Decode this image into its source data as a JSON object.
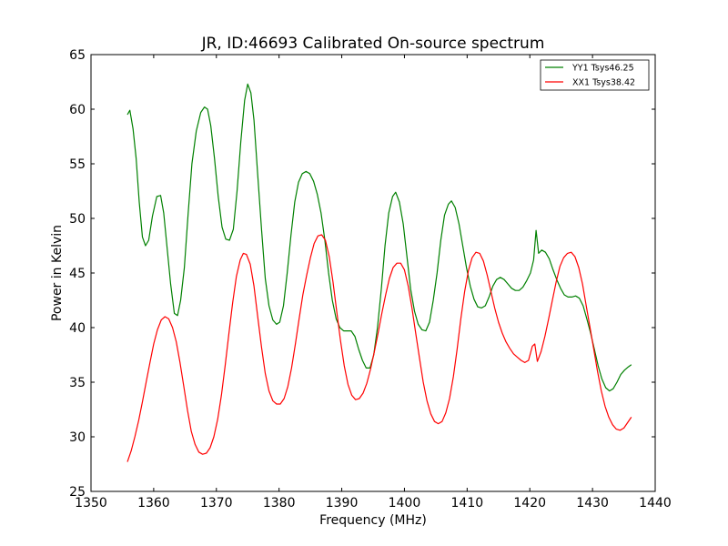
{
  "chart_data": {
    "type": "line",
    "title": "JR, ID:46693 Calibrated On-source spectrum",
    "xlabel": "Frequency (MHz)",
    "ylabel": "Power in Kelvin",
    "xlim": [
      1350,
      1440
    ],
    "ylim": [
      25,
      65
    ],
    "xticks": [
      1350,
      1360,
      1370,
      1380,
      1390,
      1400,
      1410,
      1420,
      1430,
      1440
    ],
    "yticks": [
      25,
      30,
      35,
      40,
      45,
      50,
      55,
      60,
      65
    ],
    "grid": false,
    "legend_position": "top-right",
    "series": [
      {
        "name": "YY1 Tsys46.25",
        "color": "#008000",
        "points": [
          [
            1355.8,
            59.5
          ],
          [
            1356.2,
            59.9
          ],
          [
            1356.7,
            58.2
          ],
          [
            1357.2,
            55.5
          ],
          [
            1357.7,
            51.5
          ],
          [
            1358.2,
            48.3
          ],
          [
            1358.7,
            47.5
          ],
          [
            1359.2,
            48.0
          ],
          [
            1359.8,
            50.2
          ],
          [
            1360.5,
            52.0
          ],
          [
            1361.1,
            52.1
          ],
          [
            1361.6,
            50.5
          ],
          [
            1362.1,
            47.5
          ],
          [
            1362.7,
            44.0
          ],
          [
            1363.3,
            41.3
          ],
          [
            1363.8,
            41.1
          ],
          [
            1364.3,
            42.5
          ],
          [
            1364.9,
            45.5
          ],
          [
            1365.5,
            50.5
          ],
          [
            1366.1,
            55.0
          ],
          [
            1366.8,
            58.0
          ],
          [
            1367.5,
            59.7
          ],
          [
            1368.1,
            60.2
          ],
          [
            1368.6,
            60.0
          ],
          [
            1369.1,
            58.5
          ],
          [
            1369.7,
            55.5
          ],
          [
            1370.3,
            52.0
          ],
          [
            1370.9,
            49.2
          ],
          [
            1371.5,
            48.1
          ],
          [
            1372.1,
            48.0
          ],
          [
            1372.7,
            49.0
          ],
          [
            1373.3,
            52.5
          ],
          [
            1373.9,
            57.0
          ],
          [
            1374.5,
            60.8
          ],
          [
            1375.0,
            62.3
          ],
          [
            1375.5,
            61.5
          ],
          [
            1376.0,
            59.0
          ],
          [
            1376.6,
            54.0
          ],
          [
            1377.2,
            49.0
          ],
          [
            1377.8,
            44.5
          ],
          [
            1378.4,
            42.0
          ],
          [
            1379.0,
            40.7
          ],
          [
            1379.6,
            40.3
          ],
          [
            1380.1,
            40.5
          ],
          [
            1380.7,
            42.0
          ],
          [
            1381.3,
            45.0
          ],
          [
            1381.9,
            48.5
          ],
          [
            1382.5,
            51.5
          ],
          [
            1383.1,
            53.3
          ],
          [
            1383.7,
            54.1
          ],
          [
            1384.3,
            54.3
          ],
          [
            1384.9,
            54.1
          ],
          [
            1385.5,
            53.4
          ],
          [
            1386.1,
            52.2
          ],
          [
            1386.7,
            50.5
          ],
          [
            1387.3,
            48.0
          ],
          [
            1387.9,
            45.0
          ],
          [
            1388.5,
            42.5
          ],
          [
            1389.1,
            40.8
          ],
          [
            1389.7,
            40.0
          ],
          [
            1390.3,
            39.7
          ],
          [
            1390.9,
            39.7
          ],
          [
            1391.5,
            39.7
          ],
          [
            1392.1,
            39.2
          ],
          [
            1392.7,
            38.0
          ],
          [
            1393.3,
            37.0
          ],
          [
            1393.9,
            36.3
          ],
          [
            1394.5,
            36.3
          ],
          [
            1395.1,
            37.5
          ],
          [
            1395.7,
            40.0
          ],
          [
            1396.3,
            43.5
          ],
          [
            1396.9,
            47.5
          ],
          [
            1397.5,
            50.5
          ],
          [
            1398.1,
            52.0
          ],
          [
            1398.6,
            52.4
          ],
          [
            1399.2,
            51.5
          ],
          [
            1399.8,
            49.5
          ],
          [
            1400.4,
            46.5
          ],
          [
            1401.0,
            43.5
          ],
          [
            1401.6,
            41.5
          ],
          [
            1402.2,
            40.3
          ],
          [
            1402.8,
            39.8
          ],
          [
            1403.4,
            39.7
          ],
          [
            1404.0,
            40.5
          ],
          [
            1404.6,
            42.5
          ],
          [
            1405.2,
            45.0
          ],
          [
            1405.8,
            48.0
          ],
          [
            1406.4,
            50.3
          ],
          [
            1407.0,
            51.3
          ],
          [
            1407.5,
            51.6
          ],
          [
            1408.1,
            51.0
          ],
          [
            1408.7,
            49.5
          ],
          [
            1409.3,
            47.5
          ],
          [
            1409.9,
            45.5
          ],
          [
            1410.5,
            43.8
          ],
          [
            1411.1,
            42.6
          ],
          [
            1411.7,
            41.9
          ],
          [
            1412.3,
            41.8
          ],
          [
            1412.9,
            42.0
          ],
          [
            1413.5,
            42.8
          ],
          [
            1414.1,
            43.8
          ],
          [
            1414.7,
            44.4
          ],
          [
            1415.3,
            44.6
          ],
          [
            1415.9,
            44.4
          ],
          [
            1416.5,
            44.0
          ],
          [
            1417.1,
            43.6
          ],
          [
            1417.7,
            43.4
          ],
          [
            1418.3,
            43.4
          ],
          [
            1418.9,
            43.7
          ],
          [
            1419.5,
            44.3
          ],
          [
            1420.1,
            45.0
          ],
          [
            1420.6,
            46.2
          ],
          [
            1421.0,
            48.9
          ],
          [
            1421.4,
            46.8
          ],
          [
            1421.9,
            47.1
          ],
          [
            1422.5,
            46.9
          ],
          [
            1423.1,
            46.3
          ],
          [
            1423.7,
            45.3
          ],
          [
            1424.3,
            44.4
          ],
          [
            1424.9,
            43.6
          ],
          [
            1425.5,
            43.0
          ],
          [
            1426.1,
            42.8
          ],
          [
            1426.7,
            42.8
          ],
          [
            1427.3,
            42.9
          ],
          [
            1427.9,
            42.7
          ],
          [
            1428.5,
            42.0
          ],
          [
            1429.1,
            40.8
          ],
          [
            1429.7,
            39.5
          ],
          [
            1430.3,
            38.0
          ],
          [
            1430.9,
            36.5
          ],
          [
            1431.5,
            35.3
          ],
          [
            1432.1,
            34.5
          ],
          [
            1432.7,
            34.2
          ],
          [
            1433.3,
            34.4
          ],
          [
            1433.9,
            35.0
          ],
          [
            1434.5,
            35.7
          ],
          [
            1435.1,
            36.1
          ],
          [
            1435.7,
            36.4
          ],
          [
            1436.2,
            36.6
          ]
        ]
      },
      {
        "name": "XX1 Tsys38.42",
        "color": "#ff0000",
        "points": [
          [
            1355.8,
            27.7
          ],
          [
            1356.4,
            28.7
          ],
          [
            1357.0,
            30.0
          ],
          [
            1357.6,
            31.5
          ],
          [
            1358.2,
            33.2
          ],
          [
            1358.8,
            35.0
          ],
          [
            1359.4,
            36.8
          ],
          [
            1360.0,
            38.5
          ],
          [
            1360.6,
            39.8
          ],
          [
            1361.2,
            40.7
          ],
          [
            1361.8,
            41.0
          ],
          [
            1362.4,
            40.8
          ],
          [
            1363.0,
            40.0
          ],
          [
            1363.6,
            38.7
          ],
          [
            1364.2,
            36.8
          ],
          [
            1364.8,
            34.6
          ],
          [
            1365.4,
            32.4
          ],
          [
            1366.0,
            30.5
          ],
          [
            1366.6,
            29.3
          ],
          [
            1367.2,
            28.6
          ],
          [
            1367.8,
            28.4
          ],
          [
            1368.4,
            28.5
          ],
          [
            1369.0,
            29.0
          ],
          [
            1369.6,
            30.0
          ],
          [
            1370.2,
            31.6
          ],
          [
            1370.8,
            33.8
          ],
          [
            1371.4,
            36.5
          ],
          [
            1372.0,
            39.5
          ],
          [
            1372.6,
            42.3
          ],
          [
            1373.2,
            44.7
          ],
          [
            1373.8,
            46.2
          ],
          [
            1374.3,
            46.8
          ],
          [
            1374.8,
            46.7
          ],
          [
            1375.4,
            45.8
          ],
          [
            1376.0,
            43.8
          ],
          [
            1376.6,
            41.0
          ],
          [
            1377.2,
            38.2
          ],
          [
            1377.8,
            35.8
          ],
          [
            1378.4,
            34.2
          ],
          [
            1379.0,
            33.3
          ],
          [
            1379.6,
            33.0
          ],
          [
            1380.2,
            33.0
          ],
          [
            1380.8,
            33.5
          ],
          [
            1381.4,
            34.6
          ],
          [
            1382.0,
            36.3
          ],
          [
            1382.6,
            38.5
          ],
          [
            1383.2,
            40.8
          ],
          [
            1383.8,
            43.0
          ],
          [
            1384.4,
            44.8
          ],
          [
            1385.0,
            46.4
          ],
          [
            1385.6,
            47.7
          ],
          [
            1386.2,
            48.4
          ],
          [
            1386.8,
            48.5
          ],
          [
            1387.4,
            48.0
          ],
          [
            1388.0,
            46.5
          ],
          [
            1388.6,
            44.2
          ],
          [
            1389.2,
            41.5
          ],
          [
            1389.8,
            38.8
          ],
          [
            1390.4,
            36.5
          ],
          [
            1391.0,
            34.8
          ],
          [
            1391.6,
            33.8
          ],
          [
            1392.2,
            33.4
          ],
          [
            1392.8,
            33.5
          ],
          [
            1393.4,
            34.0
          ],
          [
            1394.0,
            34.9
          ],
          [
            1394.6,
            36.2
          ],
          [
            1395.2,
            37.8
          ],
          [
            1395.8,
            39.5
          ],
          [
            1396.4,
            41.3
          ],
          [
            1397.0,
            43.0
          ],
          [
            1397.6,
            44.5
          ],
          [
            1398.2,
            45.5
          ],
          [
            1398.8,
            45.9
          ],
          [
            1399.4,
            45.9
          ],
          [
            1400.0,
            45.3
          ],
          [
            1400.6,
            43.8
          ],
          [
            1401.2,
            41.8
          ],
          [
            1401.8,
            39.5
          ],
          [
            1402.4,
            37.2
          ],
          [
            1403.0,
            35.0
          ],
          [
            1403.6,
            33.3
          ],
          [
            1404.2,
            32.1
          ],
          [
            1404.8,
            31.4
          ],
          [
            1405.4,
            31.2
          ],
          [
            1406.0,
            31.4
          ],
          [
            1406.6,
            32.2
          ],
          [
            1407.2,
            33.5
          ],
          [
            1407.8,
            35.5
          ],
          [
            1408.4,
            38.0
          ],
          [
            1409.0,
            40.8
          ],
          [
            1409.6,
            43.3
          ],
          [
            1410.2,
            45.2
          ],
          [
            1410.8,
            46.4
          ],
          [
            1411.4,
            46.9
          ],
          [
            1412.0,
            46.8
          ],
          [
            1412.6,
            46.1
          ],
          [
            1413.2,
            44.8
          ],
          [
            1413.8,
            43.3
          ],
          [
            1414.4,
            41.8
          ],
          [
            1415.0,
            40.5
          ],
          [
            1415.6,
            39.5
          ],
          [
            1416.2,
            38.7
          ],
          [
            1416.8,
            38.1
          ],
          [
            1417.4,
            37.6
          ],
          [
            1418.0,
            37.3
          ],
          [
            1418.6,
            37.0
          ],
          [
            1419.2,
            36.8
          ],
          [
            1419.8,
            37.0
          ],
          [
            1420.4,
            38.3
          ],
          [
            1420.8,
            38.5
          ],
          [
            1421.2,
            36.9
          ],
          [
            1421.8,
            37.8
          ],
          [
            1422.4,
            39.2
          ],
          [
            1423.0,
            40.8
          ],
          [
            1423.6,
            42.5
          ],
          [
            1424.2,
            44.2
          ],
          [
            1424.8,
            45.6
          ],
          [
            1425.4,
            46.4
          ],
          [
            1426.0,
            46.8
          ],
          [
            1426.6,
            46.9
          ],
          [
            1427.2,
            46.5
          ],
          [
            1427.8,
            45.5
          ],
          [
            1428.4,
            44.0
          ],
          [
            1429.0,
            42.0
          ],
          [
            1429.6,
            40.0
          ],
          [
            1430.2,
            38.0
          ],
          [
            1430.8,
            36.0
          ],
          [
            1431.4,
            34.2
          ],
          [
            1432.0,
            32.8
          ],
          [
            1432.6,
            31.8
          ],
          [
            1433.2,
            31.1
          ],
          [
            1433.8,
            30.7
          ],
          [
            1434.4,
            30.6
          ],
          [
            1435.0,
            30.8
          ],
          [
            1435.6,
            31.3
          ],
          [
            1436.2,
            31.8
          ]
        ]
      }
    ]
  }
}
